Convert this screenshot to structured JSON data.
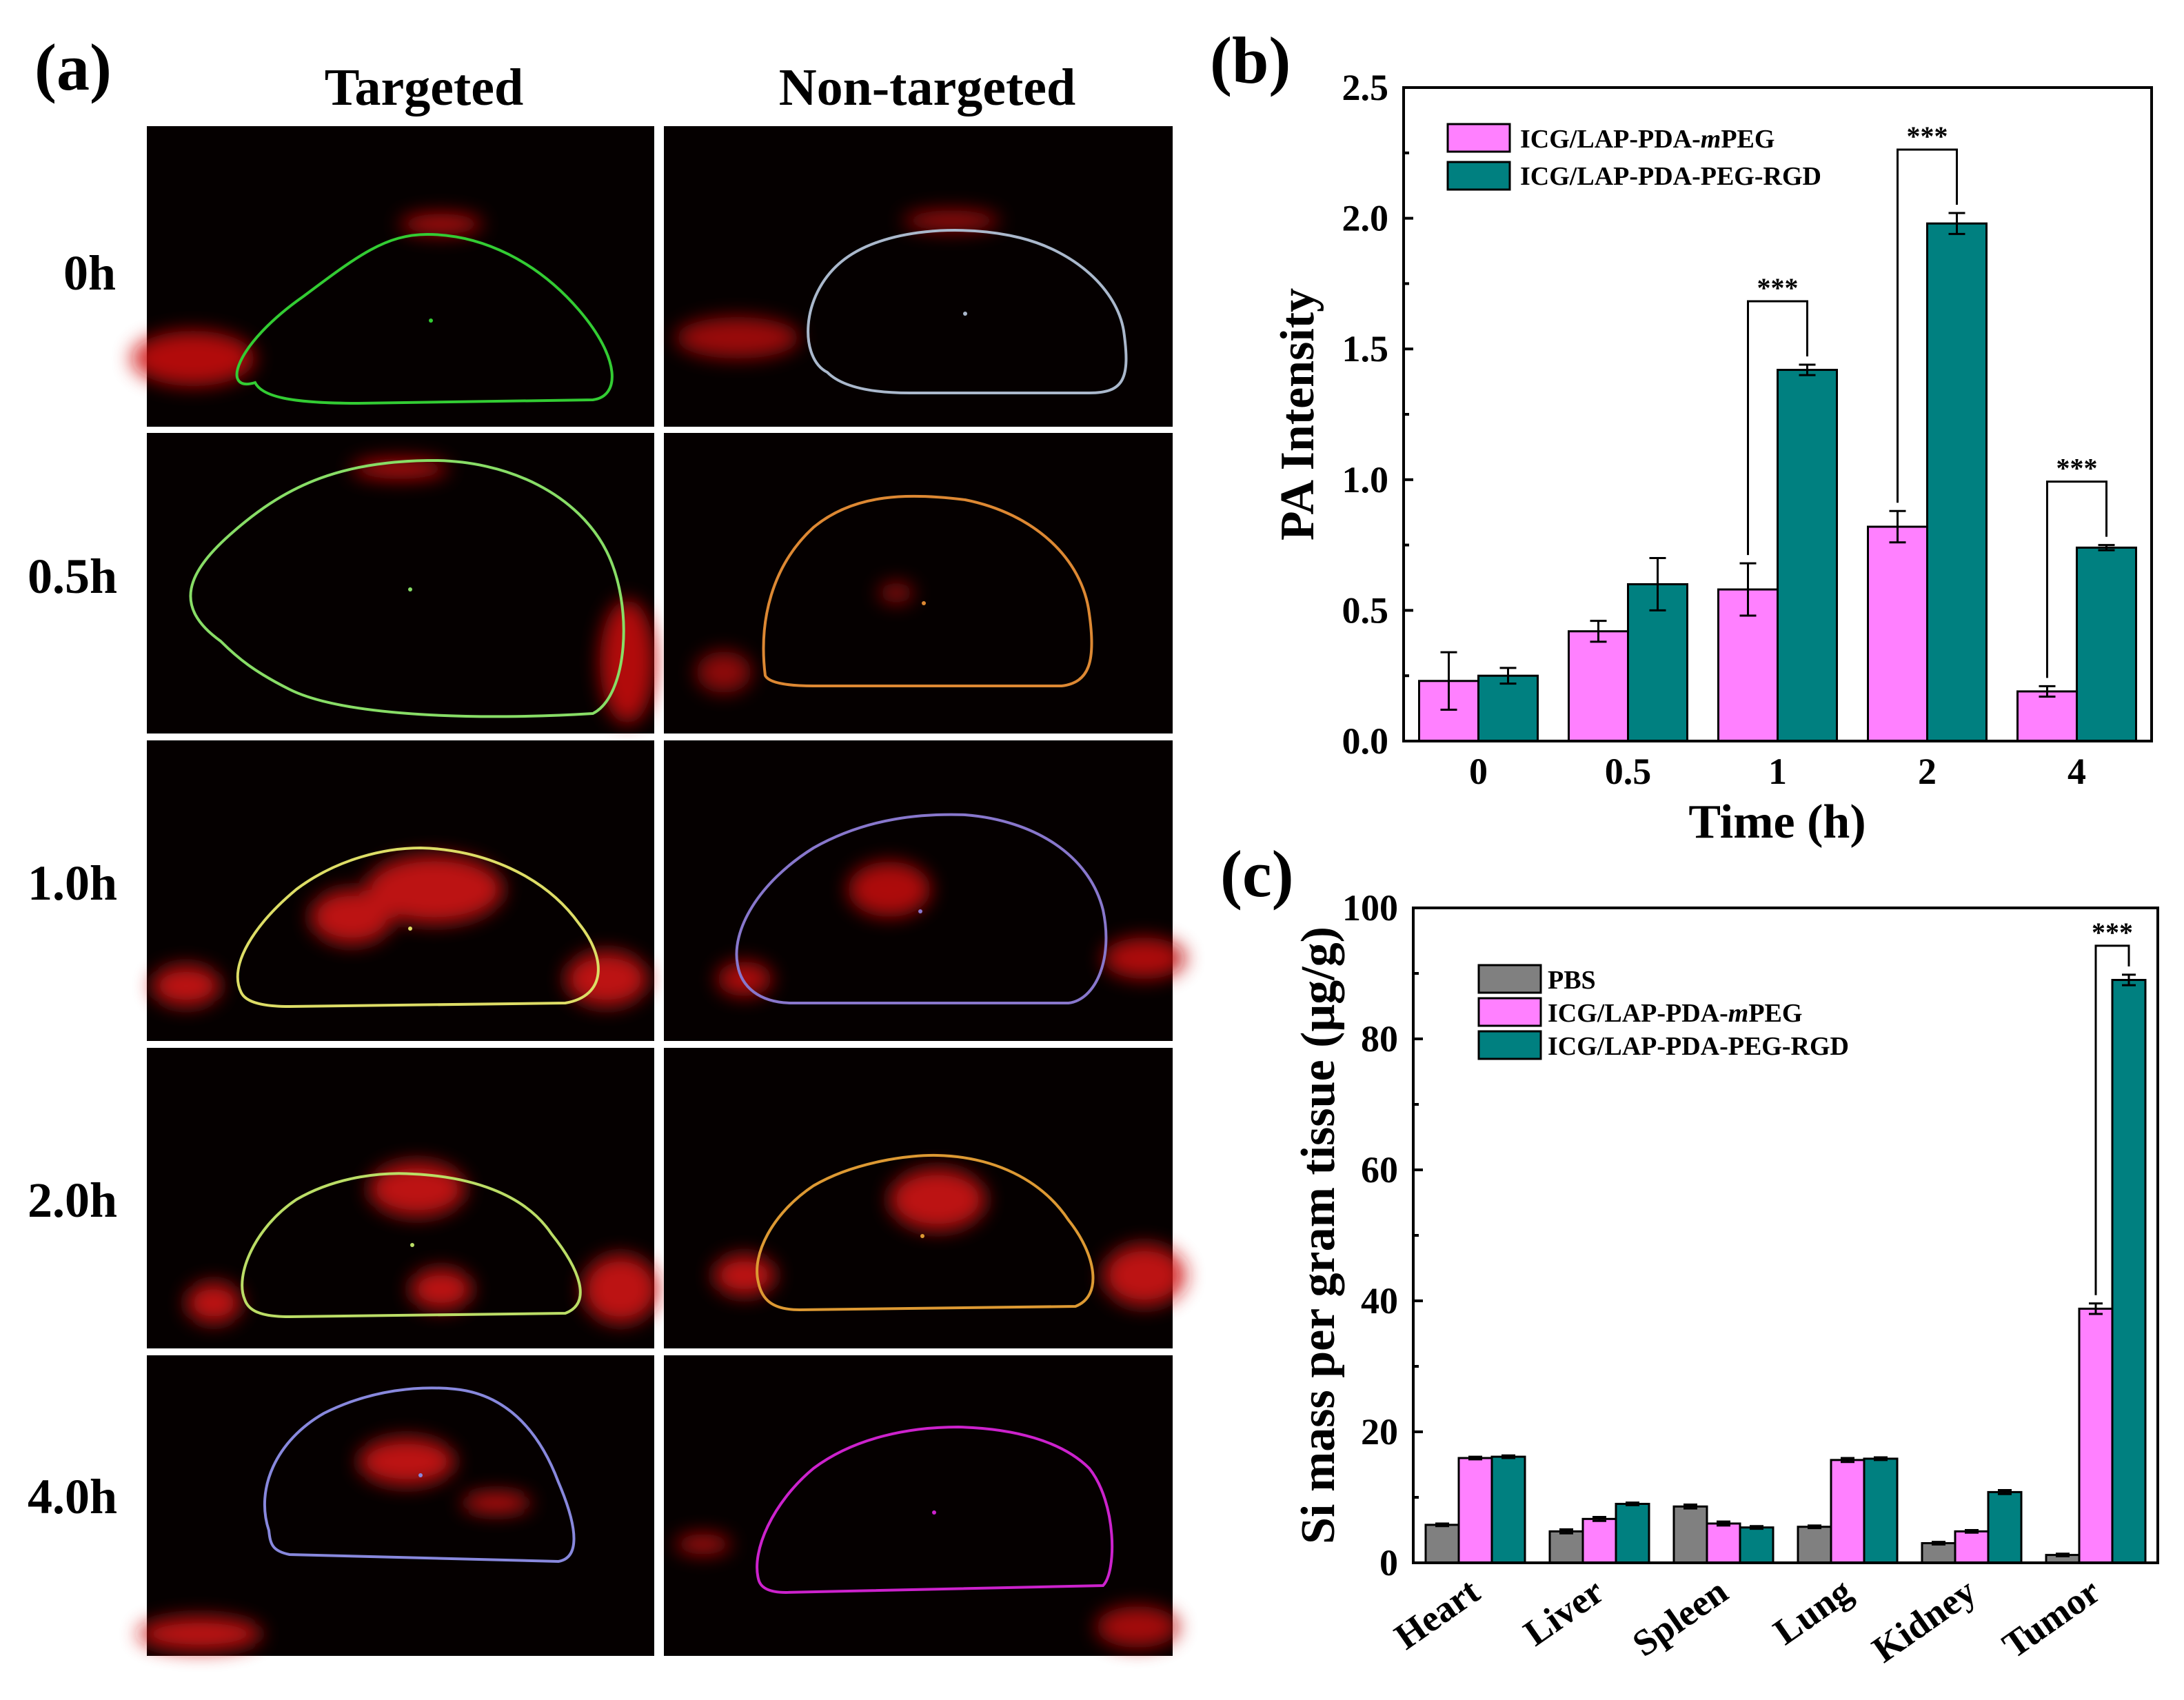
{
  "panel_a": {
    "letter": "(a)",
    "col_titles": [
      "Targeted",
      "Non-targeted"
    ],
    "row_labels": [
      "0h",
      "0.5h",
      "1.0h",
      "2.0h",
      "4.0h"
    ],
    "roi_colors": {
      "targeted": [
        "#33cc33",
        "#88dd66",
        "#dddd66",
        "#bbdd66",
        "#8888dd"
      ],
      "non_targeted": [
        "#aab8cc",
        "#dd8833",
        "#8877cc",
        "#dd9933",
        "#cc22cc"
      ]
    },
    "background_color": "#050000",
    "signal_color": "#e01010"
  },
  "chart_data": [
    {
      "panel": "(b)",
      "type": "bar",
      "title": "",
      "xlabel": "Time (h)",
      "ylabel": "PA Intensity",
      "categories": [
        "0",
        "0.5",
        "1",
        "2",
        "4"
      ],
      "ylim": [
        0,
        2.5
      ],
      "yticks": [
        "0.0",
        "0.5",
        "1.0",
        "1.5",
        "2.0",
        "2.5"
      ],
      "legend_position": "top-left",
      "series": [
        {
          "name": "ICG/LAP-PDA-mPEG",
          "name_prefix": "ICG/LAP-PDA-",
          "name_italic": "m",
          "name_suffix": "PEG",
          "color": "#ff80ff",
          "values": [
            0.23,
            0.42,
            0.58,
            0.82,
            0.19
          ],
          "errors": [
            0.11,
            0.04,
            0.1,
            0.06,
            0.02
          ]
        },
        {
          "name": "ICG/LAP-PDA-PEG-RGD",
          "color": "#008080",
          "values": [
            0.25,
            0.6,
            1.42,
            1.98,
            0.74
          ],
          "errors": [
            0.03,
            0.1,
            0.02,
            0.04,
            0.01
          ]
        }
      ],
      "significance": [
        {
          "category_index": 2,
          "label": "***"
        },
        {
          "category_index": 3,
          "label": "***"
        },
        {
          "category_index": 4,
          "label": "***"
        }
      ]
    },
    {
      "panel": "(c)",
      "type": "bar",
      "title": "",
      "xlabel": "",
      "ylabel": "Si mass per gram tissue (μg/g)",
      "categories": [
        "Heart",
        "Liver",
        "Spleen",
        "Lung",
        "Kidney",
        "Tumor"
      ],
      "ylim": [
        0,
        100
      ],
      "yticks": [
        "0",
        "20",
        "40",
        "60",
        "80",
        "100"
      ],
      "legend_position": "top-left",
      "series": [
        {
          "name": "PBS",
          "color": "#808080",
          "values": [
            5.8,
            4.8,
            8.6,
            5.5,
            3.0,
            1.2
          ],
          "errors": [
            0.2,
            0.3,
            0.3,
            0.2,
            0.2,
            0.2
          ]
        },
        {
          "name": "ICG/LAP-PDA-mPEG",
          "name_prefix": "ICG/LAP-PDA-",
          "name_italic": "m",
          "name_suffix": "PEG",
          "color": "#ff80ff",
          "values": [
            16.0,
            6.7,
            6.0,
            15.7,
            4.8,
            38.8
          ],
          "errors": [
            0.2,
            0.3,
            0.3,
            0.3,
            0.2,
            0.8
          ]
        },
        {
          "name": "ICG/LAP-PDA-PEG-RGD",
          "color": "#008080",
          "values": [
            16.2,
            9.0,
            5.4,
            15.9,
            10.8,
            89.0
          ],
          "errors": [
            0.2,
            0.2,
            0.2,
            0.2,
            0.3,
            0.8
          ]
        }
      ],
      "significance": [
        {
          "category_index": 5,
          "label": "***"
        }
      ]
    }
  ]
}
